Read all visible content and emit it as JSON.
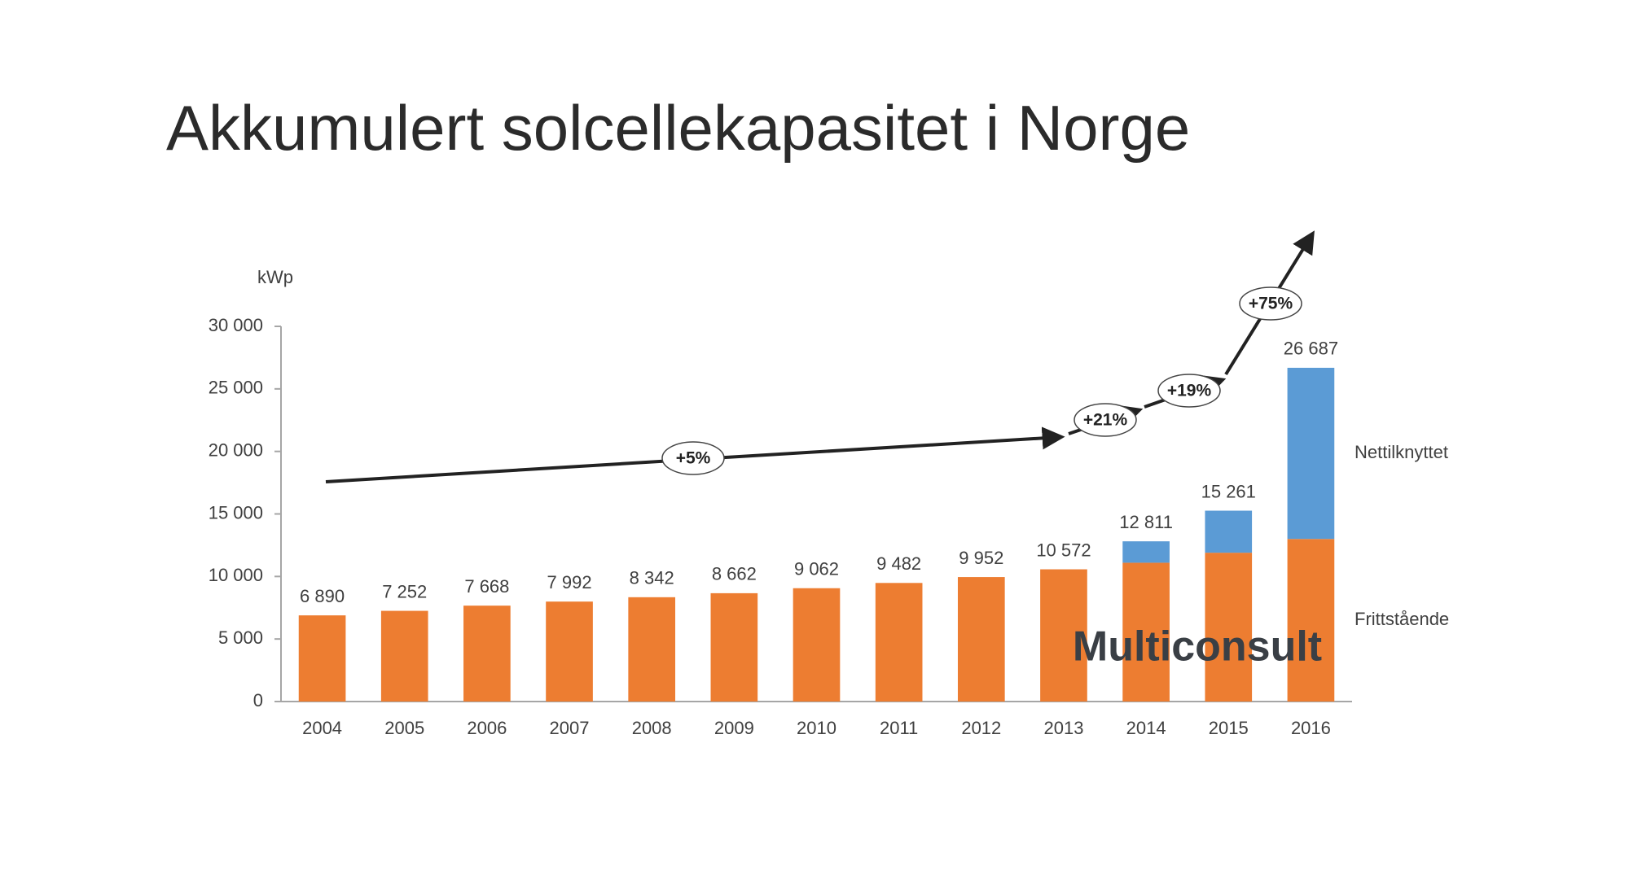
{
  "chart_data": {
    "type": "stacked_bar",
    "title": "Akkumulert solcellekapasitet i Norge",
    "y_label": "kWp",
    "categories": [
      "2004",
      "2005",
      "2006",
      "2007",
      "2008",
      "2009",
      "2010",
      "2011",
      "2012",
      "2013",
      "2014",
      "2015",
      "2016"
    ],
    "series": [
      {
        "name": "Frittstående",
        "color": "#ed7d31",
        "values": [
          6890,
          7252,
          7668,
          7992,
          8342,
          8662,
          9062,
          9482,
          9952,
          10572,
          11100,
          11900,
          13000
        ]
      },
      {
        "name": "Nettilknyttet",
        "color": "#5b9bd5",
        "values": [
          null,
          null,
          null,
          null,
          null,
          null,
          null,
          null,
          null,
          null,
          1711,
          3361,
          13687
        ]
      }
    ],
    "totals": [
      6890,
      7252,
      7668,
      7992,
      8342,
      8662,
      9062,
      9482,
      9952,
      10572,
      12811,
      15261,
      26687
    ],
    "total_labels": [
      "6 890",
      "7 252",
      "7 668",
      "7 992",
      "8 342",
      "8 662",
      "9 062",
      "9 482",
      "9 952",
      "10 572",
      "12 811",
      "15 261",
      "26 687"
    ],
    "ylim": [
      0,
      30000
    ],
    "yticks": [
      0,
      {
        "value": 5000,
        "label": "5 000"
      },
      {
        "value": 10000,
        "label": "10 000"
      },
      {
        "value": 15000,
        "label": "15 000"
      },
      {
        "value": 20000,
        "label": "20 000"
      },
      {
        "value": 25000,
        "label": "25 000"
      },
      {
        "value": 30000,
        "label": "30 000"
      }
    ],
    "grid": false,
    "annotations": [
      "+5%",
      "+21%",
      "+19%",
      "+75%"
    ],
    "logo": "Multiconsult"
  }
}
